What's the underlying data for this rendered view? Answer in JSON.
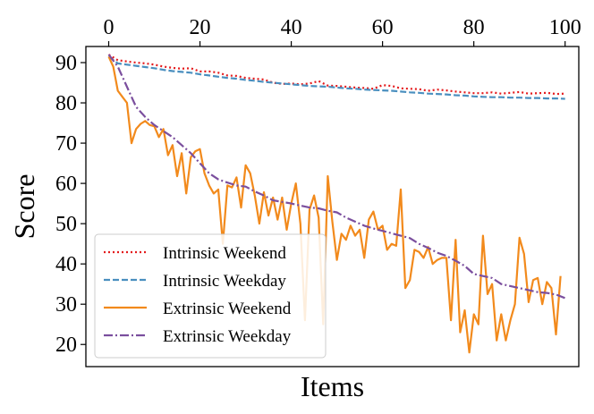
{
  "chart_data": {
    "type": "line",
    "title": "",
    "xlabel": "Items",
    "ylabel": "Score",
    "xlim": [
      -5,
      103
    ],
    "ylim": [
      14.5,
      94
    ],
    "x_ticks": [
      0,
      20,
      40,
      60,
      80,
      100
    ],
    "y_ticks": [
      20,
      30,
      40,
      50,
      60,
      70,
      80,
      90
    ],
    "x_axis_position": "top",
    "grid": false,
    "legend_position": "lower-left",
    "series": [
      {
        "name": "Intrinsic Weekend",
        "color": "#e41a1c",
        "style": "dotted",
        "x": [
          0,
          2,
          4,
          6,
          8,
          10,
          12,
          14,
          16,
          18,
          20,
          22,
          24,
          26,
          28,
          30,
          32,
          34,
          36,
          38,
          40,
          42,
          44,
          46,
          48,
          50,
          52,
          54,
          56,
          58,
          60,
          62,
          64,
          66,
          68,
          70,
          72,
          74,
          76,
          78,
          80,
          82,
          84,
          86,
          88,
          90,
          92,
          94,
          96,
          98,
          100
        ],
        "values": [
          92,
          90.6,
          90.3,
          90,
          89.8,
          89.5,
          89,
          88.7,
          88.5,
          88.6,
          87.8,
          87.8,
          87.5,
          86.8,
          86.7,
          86.2,
          86,
          85.8,
          85,
          84.7,
          84.8,
          84.6,
          84.8,
          85.4,
          84.3,
          84.2,
          84,
          83.8,
          83.7,
          83.5,
          84.4,
          84.2,
          83.6,
          83.5,
          83.4,
          83,
          83.3,
          83.1,
          82.8,
          82.6,
          82.4,
          82.4,
          82.6,
          82.3,
          82.5,
          82.7,
          82.3,
          82.4,
          82.5,
          82.2,
          82.3
        ]
      },
      {
        "name": "Intrinsic Weekday",
        "color": "#4a8fbf",
        "style": "dashed",
        "x": [
          0,
          2,
          4,
          6,
          8,
          10,
          12,
          14,
          16,
          18,
          20,
          22,
          24,
          26,
          28,
          30,
          32,
          34,
          36,
          38,
          40,
          42,
          44,
          46,
          48,
          50,
          52,
          54,
          56,
          58,
          60,
          62,
          64,
          66,
          68,
          70,
          72,
          74,
          76,
          78,
          80,
          82,
          84,
          86,
          88,
          90,
          92,
          94,
          96,
          98,
          100
        ],
        "values": [
          91.5,
          89.8,
          89.5,
          89.2,
          88.9,
          88.6,
          88.2,
          87.9,
          87.7,
          87.5,
          87.1,
          86.8,
          86.5,
          86.2,
          86,
          85.7,
          85.5,
          85.2,
          85,
          84.8,
          84.6,
          84.4,
          84.2,
          84.1,
          84,
          83.8,
          83.6,
          83.5,
          83.3,
          83.2,
          83.1,
          83,
          82.8,
          82.6,
          82.5,
          82.3,
          82.2,
          82.1,
          81.9,
          81.8,
          81.6,
          81.5,
          81.4,
          81.4,
          81.3,
          81.3,
          81.2,
          81.2,
          81.1,
          81.1,
          81
        ]
      },
      {
        "name": "Extrinsic Weekend",
        "color": "#f28a1c",
        "style": "solid",
        "x": [
          0,
          1,
          2,
          3,
          4,
          5,
          6,
          7,
          8,
          9,
          10,
          11,
          12,
          13,
          14,
          15,
          16,
          17,
          18,
          19,
          20,
          21,
          22,
          23,
          24,
          25,
          26,
          27,
          28,
          29,
          30,
          31,
          32,
          33,
          34,
          35,
          36,
          37,
          38,
          39,
          40,
          41,
          42,
          43,
          44,
          45,
          46,
          47,
          48,
          49,
          50,
          51,
          52,
          53,
          54,
          55,
          56,
          57,
          58,
          59,
          60,
          61,
          62,
          63,
          64,
          65,
          66,
          67,
          68,
          69,
          70,
          71,
          72,
          73,
          74,
          75,
          76,
          77,
          78,
          79,
          80,
          81,
          82,
          83,
          84,
          85,
          86,
          87,
          88,
          89,
          90,
          91,
          92,
          93,
          94,
          95,
          96,
          97,
          98,
          99
        ],
        "values": [
          91.5,
          89,
          83,
          81.5,
          80,
          70,
          73.5,
          74.8,
          75.5,
          74.5,
          74.2,
          71.5,
          73.5,
          67,
          69.5,
          61.8,
          67.5,
          57.5,
          66.5,
          68,
          68.5,
          62.5,
          59.5,
          57.5,
          58.5,
          45,
          59.5,
          59,
          61.5,
          54,
          64.5,
          62.5,
          57,
          50,
          57.8,
          52,
          56.5,
          51,
          56.5,
          48.5,
          55,
          60,
          50,
          26,
          53.5,
          57,
          51.5,
          25,
          61.8,
          50.5,
          41,
          47.5,
          46,
          49.5,
          47,
          48.5,
          41.5,
          51,
          53,
          48.5,
          49.5,
          43.5,
          45,
          44.5,
          58.5,
          34,
          36,
          43.5,
          43,
          41.5,
          44.2,
          40,
          41,
          41.5,
          41.5,
          26,
          46,
          23,
          28.5,
          18,
          27.5,
          25,
          47,
          32.5,
          35,
          21,
          27.5,
          21,
          26,
          30,
          46.5,
          42.5,
          30.5,
          36,
          36.5,
          30,
          35.5,
          34,
          22.5,
          37
        ]
      },
      {
        "name": "Extrinsic Weekday",
        "color": "#7b4f9e",
        "style": "dashdot",
        "x": [
          0,
          2,
          4,
          6,
          8,
          10,
          12,
          14,
          16,
          18,
          20,
          22,
          24,
          26,
          28,
          30,
          32,
          34,
          36,
          38,
          40,
          42,
          44,
          46,
          48,
          50,
          52,
          54,
          56,
          58,
          60,
          62,
          64,
          66,
          68,
          70,
          72,
          74,
          76,
          78,
          80,
          82,
          84,
          86,
          88,
          90,
          92,
          94,
          96,
          98,
          100
        ],
        "values": [
          92,
          89,
          84,
          79,
          76.5,
          74.5,
          73,
          71.5,
          69.5,
          67.5,
          65,
          62.5,
          61,
          60.2,
          59.5,
          59.2,
          58,
          57,
          55.8,
          55.4,
          55,
          54.5,
          54,
          53.8,
          53.2,
          52.8,
          51.5,
          50.5,
          49.5,
          48.8,
          48.2,
          47.6,
          47,
          46.4,
          45,
          44,
          42.8,
          42,
          40.8,
          39.5,
          37.5,
          37,
          36.5,
          35,
          34.5,
          34,
          33.5,
          33,
          32.8,
          32.4,
          31.5
        ]
      }
    ]
  }
}
